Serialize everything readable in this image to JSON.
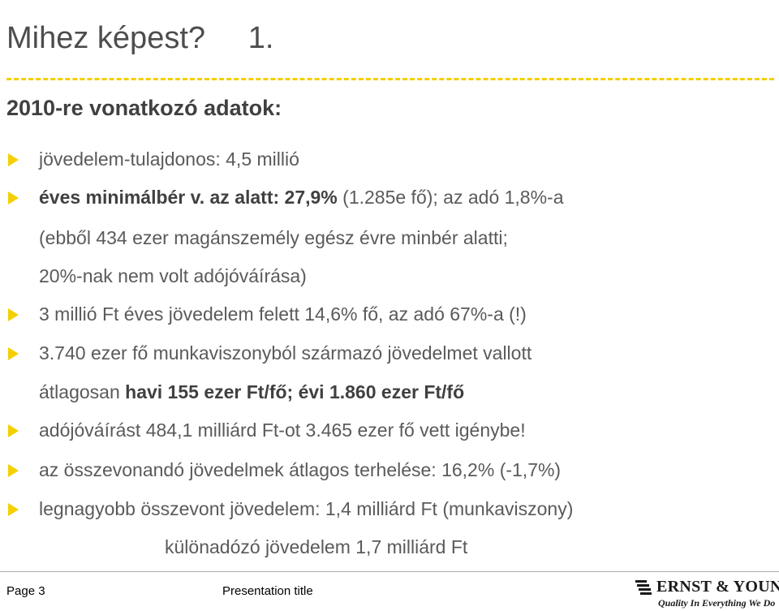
{
  "slide": {
    "title": "Mihez képest?     1.",
    "subtitle": "2010-re vonatkozó adatok:"
  },
  "lines": {
    "l1": "jövedelem-tulajdonos: 4,5 millió",
    "l2_bold": "éves minimálbér v. az alatt: 27,9%",
    "l2_rest": " (1.285e fő); az adó 1,8%-a",
    "l3": "(ebből 434 ezer magánszemély egész évre minbér alatti;",
    "l4": "20%-nak nem volt adójóváírása)",
    "l5": "3 millió Ft éves jövedelem felett 14,6% fő, az adó 67%-a (!)",
    "l6": "3.740 ezer fő munkaviszonyból származó jövedelmet vallott",
    "l7_pre": "átlagosan ",
    "l7_bold": "havi 155 ezer Ft/fő; évi 1.860 ezer Ft/fő",
    "l8": "adójóváírást  484,1 milliárd Ft-ot  3.465 ezer fő vett igénybe!",
    "l9": "az összevonandó jövedelmek átlagos terhelése: 16,2%  (-1,7%)",
    "l10": "legnagyobb összevont jövedelem: 1,4 milliárd Ft (munkaviszony)",
    "l11": "különadózó jövedelem 1,7 milliárd Ft"
  },
  "footer": {
    "page": "Page 3",
    "presentation_title": "Presentation title",
    "logo_name": "ERNST & YOUNG",
    "logo_tagline": "Quality In Everything We Do"
  },
  "colors": {
    "accent": "#f5cf00",
    "text": "#5a5a5a",
    "title": "#4d4d4d"
  },
  "icons": {
    "bullet": "triangle-right-bullet-icon",
    "logo": "ernst-young-logo"
  }
}
